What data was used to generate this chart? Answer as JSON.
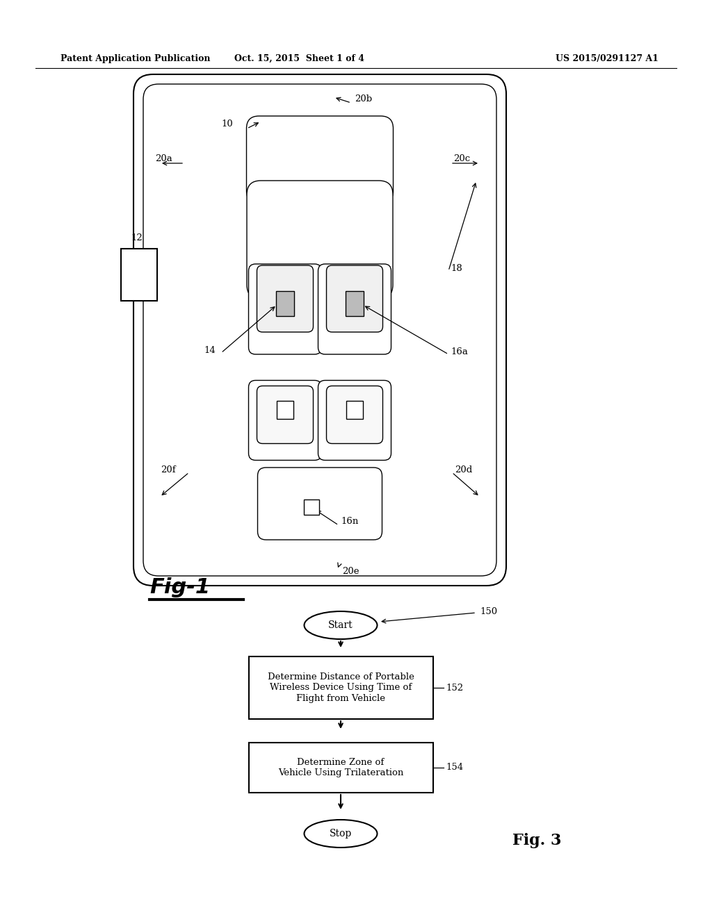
{
  "header_left": "Patent Application Publication",
  "header_mid": "Oct. 15, 2015  Sheet 1 of 4",
  "header_right": "US 2015/0291127 A1",
  "fig1_label": "Fig-1",
  "fig3_label": "Fig. 3",
  "background_color": "#ffffff",
  "line_color": "#000000",
  "flow_start_text": "Start",
  "flow_box1_text": "Determine Distance of Portable\nWireless Device Using Time of\nFlight from Vehicle",
  "flow_box2_text": "Determine Zone of\nVehicle Using Trilateration",
  "flow_stop_text": "Stop",
  "flow_label_150": "150",
  "flow_label_152": "152",
  "flow_label_154": "154"
}
